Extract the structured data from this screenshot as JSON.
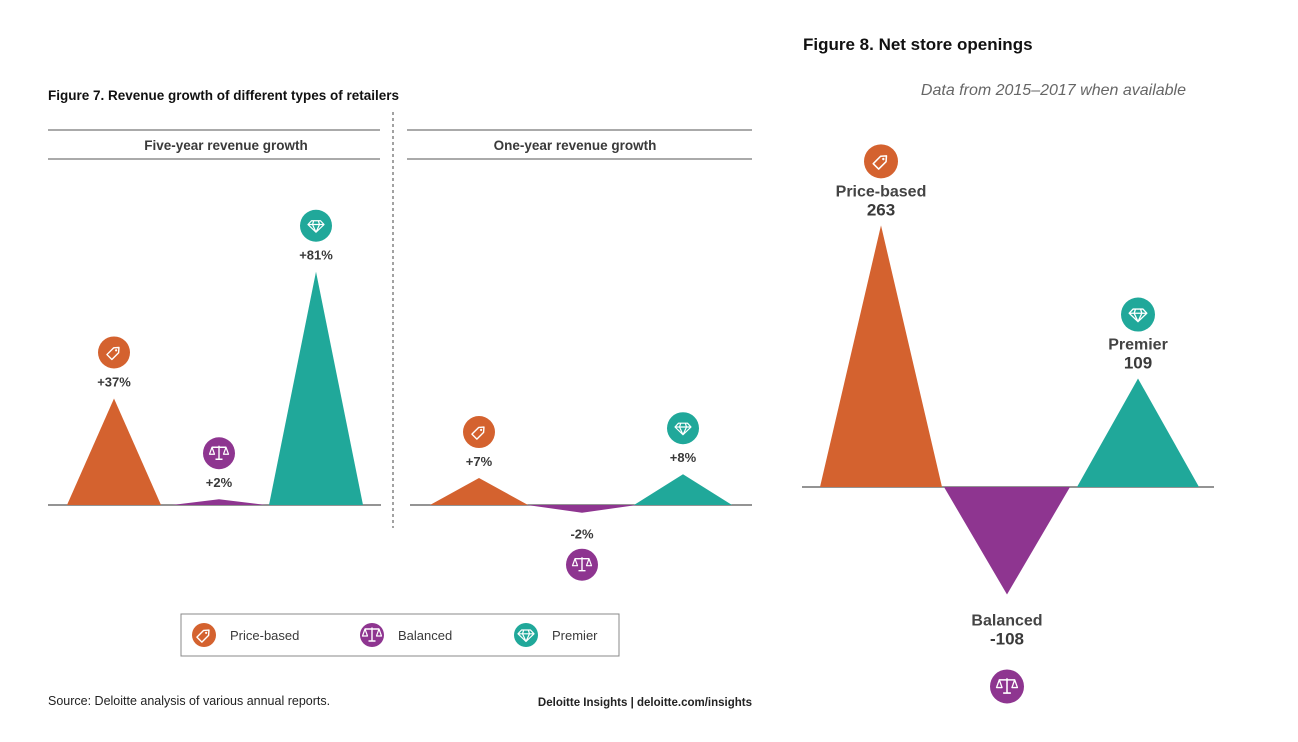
{
  "colors": {
    "price": "#d4622f",
    "balanced": "#8e3590",
    "premier": "#20a89a",
    "axis": "#555555"
  },
  "legend": {
    "items": [
      {
        "label": "Price-based",
        "icon": "price-tag-icon",
        "color": "#d4622f"
      },
      {
        "label": "Balanced",
        "icon": "scales-icon",
        "color": "#8e3590"
      },
      {
        "label": "Premier",
        "icon": "diamond-icon",
        "color": "#20a89a"
      }
    ]
  },
  "fig7": {
    "title": "Figure 7. Revenue growth of different types of retailers",
    "source": "Source: Deloitte analysis of various annual reports.",
    "credit": "Deloitte Insights | deloitte.com/insights"
  },
  "fig8": {
    "title": "Figure 8. Net store openings",
    "subtitle": "Data from 2015–2017 when available"
  },
  "chart_data": [
    {
      "type": "area",
      "title": "Five-year revenue growth",
      "categories": [
        "Price-based",
        "Balanced",
        "Premier"
      ],
      "values": [
        37,
        2,
        81
      ],
      "value_labels": [
        "+37%",
        "+2%",
        "+81%"
      ],
      "unit": "%"
    },
    {
      "type": "area",
      "title": "One-year revenue growth",
      "categories": [
        "Price-based",
        "Balanced",
        "Premier"
      ],
      "values": [
        7,
        -2,
        8
      ],
      "value_labels": [
        "+7%",
        "-2%",
        "+8%"
      ],
      "unit": "%"
    },
    {
      "type": "area",
      "title": "Figure 8. Net store openings",
      "categories": [
        "Price-based",
        "Balanced",
        "Premier"
      ],
      "values": [
        263,
        -108,
        109
      ],
      "value_labels": [
        "263",
        "-108",
        "109"
      ]
    }
  ]
}
